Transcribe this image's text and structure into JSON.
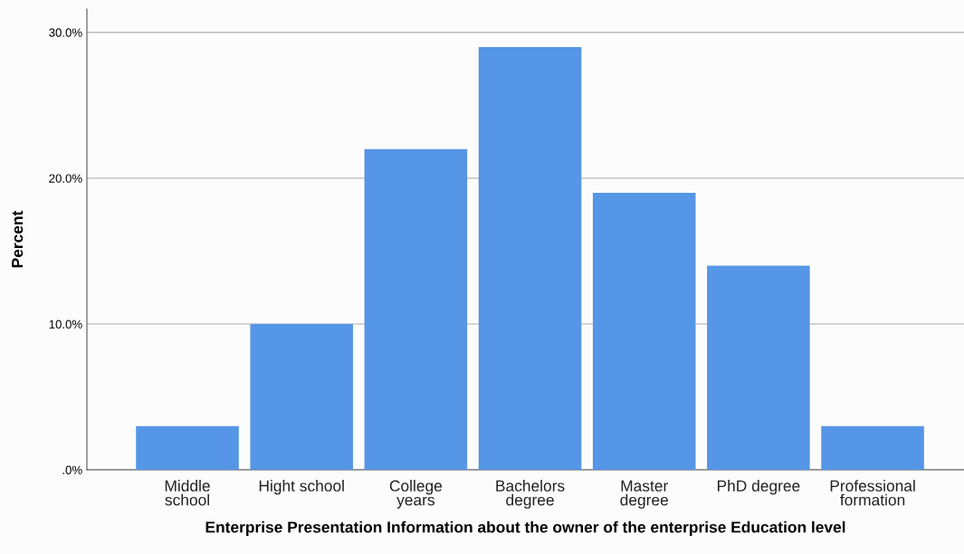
{
  "chart_data": {
    "type": "bar",
    "xlabel": "Enterprise Presentation Information about the owner of the enterprise Education level",
    "ylabel": "Percent",
    "categories": [
      "Middle\nschool",
      "Hight school",
      "College\nyears",
      "Bachelors\ndegree",
      "Master\ndegree",
      "PhD degree",
      "Professional\nformation"
    ],
    "values": [
      3,
      10,
      22,
      29,
      19,
      14,
      3
    ],
    "color": "#5596e6",
    "ylim": [
      0,
      31.6
    ],
    "yticks": [
      {
        "value": 0,
        "label": ".0%"
      },
      {
        "value": 10,
        "label": "10.0%"
      },
      {
        "value": 20,
        "label": "20.0%"
      },
      {
        "value": 30,
        "label": "30.0%"
      }
    ],
    "grid": "y"
  }
}
